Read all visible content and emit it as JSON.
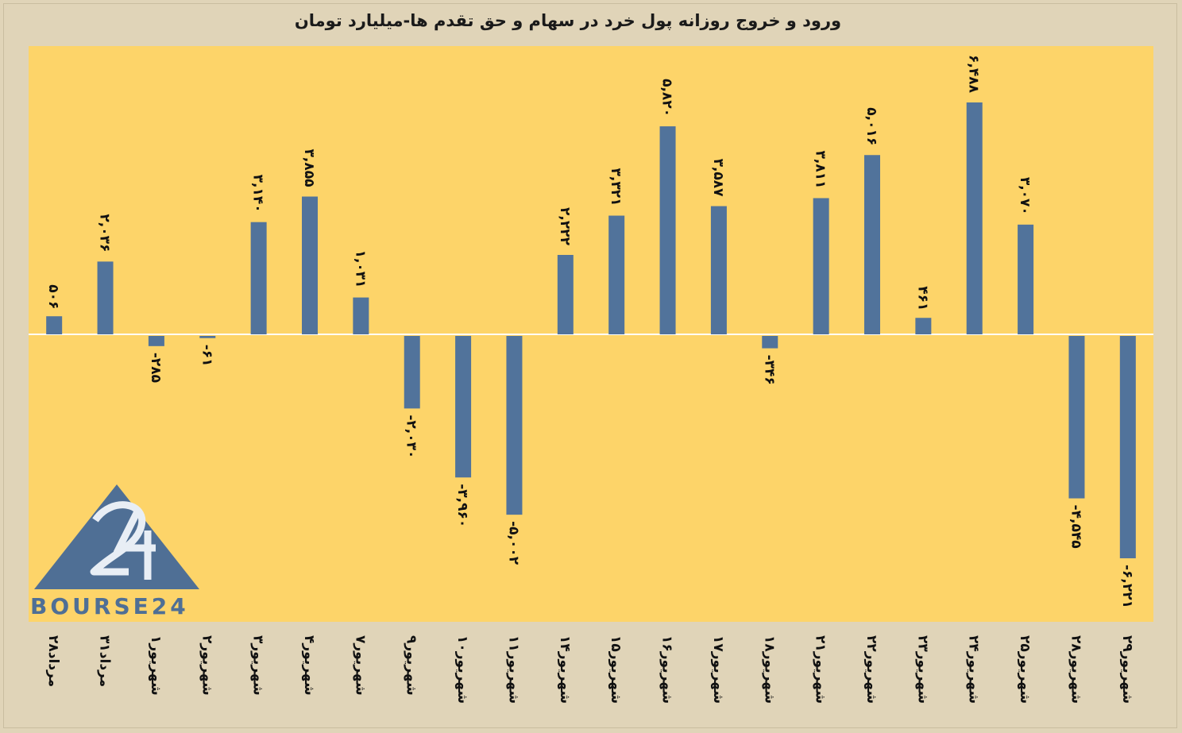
{
  "chart_data": {
    "type": "bar",
    "title": "ورود و خروج روزانه پول خرد در سهام و حق تقدم ها-میلیارد تومان",
    "xlabel": "",
    "ylabel": "",
    "grid": false,
    "ylim": [
      -6500,
      6500
    ],
    "bar_color": "#51739b",
    "plot_bg": "#fdd469",
    "categories": [
      "۲۸مرداد",
      "۳۱مرداد",
      "۱شهریور",
      "۲شهریور",
      "۳شهریور",
      "۴شهریور",
      "۷شهریور",
      "۹شهریور",
      "۱۰شهریور",
      "۱۱شهریور",
      "۱۴شهریور",
      "۱۵شهریور",
      "۱۶شهریور",
      "۱۷شهریور",
      "۱۸شهریور",
      "۲۱شهریور",
      "۲۲شهریور",
      "۲۳شهریور",
      "۲۴شهریور",
      "۲۵شهریور",
      "۲۸شهریور",
      "۲۹شهریور"
    ],
    "values": [
      506,
      2036,
      -285,
      -61,
      3140,
      3855,
      1031,
      -2030,
      -3960,
      -5002,
      2222,
      3321,
      5820,
      3587,
      -346,
      3811,
      5016,
      461,
      6488,
      3070,
      -4545,
      -6221
    ],
    "data_labels": [
      "۵۰۶",
      "۲,۰۳۶",
      "-۲۸۵",
      "-۶۱",
      "۳,۱۴۰",
      "۳,۸۵۵",
      "۱,۰۳۱",
      "-۲,۰۳۰",
      "-۳,۹۶۰",
      "-۵,۰۰۲",
      "۲,۲۲۲",
      "۳,۳۲۱",
      "۵,۸۲۰",
      "۳,۵۸۷",
      "-۳۴۶",
      "۳,۸۱۱",
      "۵,۰۱۶",
      "۴۶۱",
      "۶,۴۸۸",
      "۳,۰۷۰",
      "-۴,۵۴۵",
      "-۶,۲۲۱"
    ]
  },
  "logo": {
    "number": "24",
    "text": "BOURSE24",
    "color": "#4f6f95"
  }
}
